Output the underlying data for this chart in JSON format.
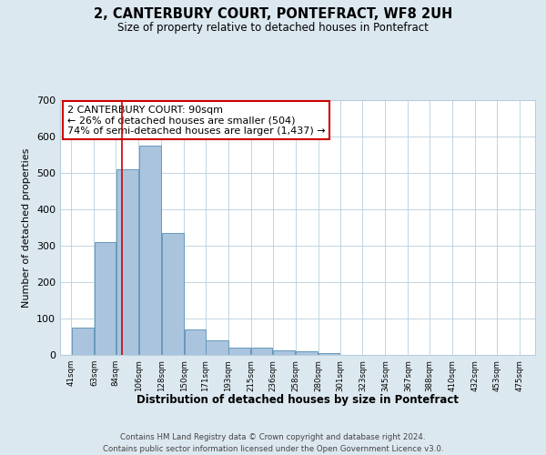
{
  "title": "2, CANTERBURY COURT, PONTEFRACT, WF8 2UH",
  "subtitle": "Size of property relative to detached houses in Pontefract",
  "xlabel": "Distribution of detached houses by size in Pontefract",
  "ylabel": "Number of detached properties",
  "footnote1": "Contains HM Land Registry data © Crown copyright and database right 2024.",
  "footnote2": "Contains public sector information licensed under the Open Government Licence v3.0.",
  "bar_left_edges": [
    41,
    63,
    84,
    106,
    128,
    150,
    171,
    193,
    215,
    236,
    258,
    280,
    301,
    323,
    345,
    367,
    388,
    410,
    432,
    453
  ],
  "bar_widths": [
    22,
    21,
    22,
    22,
    22,
    21,
    22,
    22,
    21,
    22,
    22,
    21,
    22,
    22,
    22,
    21,
    22,
    22,
    21,
    22
  ],
  "bar_heights": [
    75,
    310,
    510,
    575,
    335,
    70,
    40,
    20,
    20,
    13,
    10,
    5,
    0,
    0,
    0,
    0,
    0,
    0,
    0,
    0
  ],
  "bar_color": "#aac4de",
  "bar_edge_color": "#6699bb",
  "property_line_x": 90,
  "property_line_color": "#cc0000",
  "annotation_line1": "2 CANTERBURY COURT: 90sqm",
  "annotation_line2": "← 26% of detached houses are smaller (504)",
  "annotation_line3": "74% of semi-detached houses are larger (1,437) →",
  "annotation_box_color": "#ffffff",
  "annotation_box_edge_color": "#cc0000",
  "tick_labels": [
    "41sqm",
    "63sqm",
    "84sqm",
    "106sqm",
    "128sqm",
    "150sqm",
    "171sqm",
    "193sqm",
    "215sqm",
    "236sqm",
    "258sqm",
    "280sqm",
    "301sqm",
    "323sqm",
    "345sqm",
    "367sqm",
    "388sqm",
    "410sqm",
    "432sqm",
    "453sqm",
    "475sqm"
  ],
  "tick_positions": [
    41,
    63,
    84,
    106,
    128,
    150,
    171,
    193,
    215,
    236,
    258,
    280,
    301,
    323,
    345,
    367,
    388,
    410,
    432,
    453,
    475
  ],
  "ylim": [
    0,
    700
  ],
  "xlim": [
    30,
    490
  ],
  "yticks": [
    0,
    100,
    200,
    300,
    400,
    500,
    600,
    700
  ],
  "background_color": "#dce8f0",
  "plot_bg_color": "#ffffff",
  "grid_color": "#b8cedd"
}
